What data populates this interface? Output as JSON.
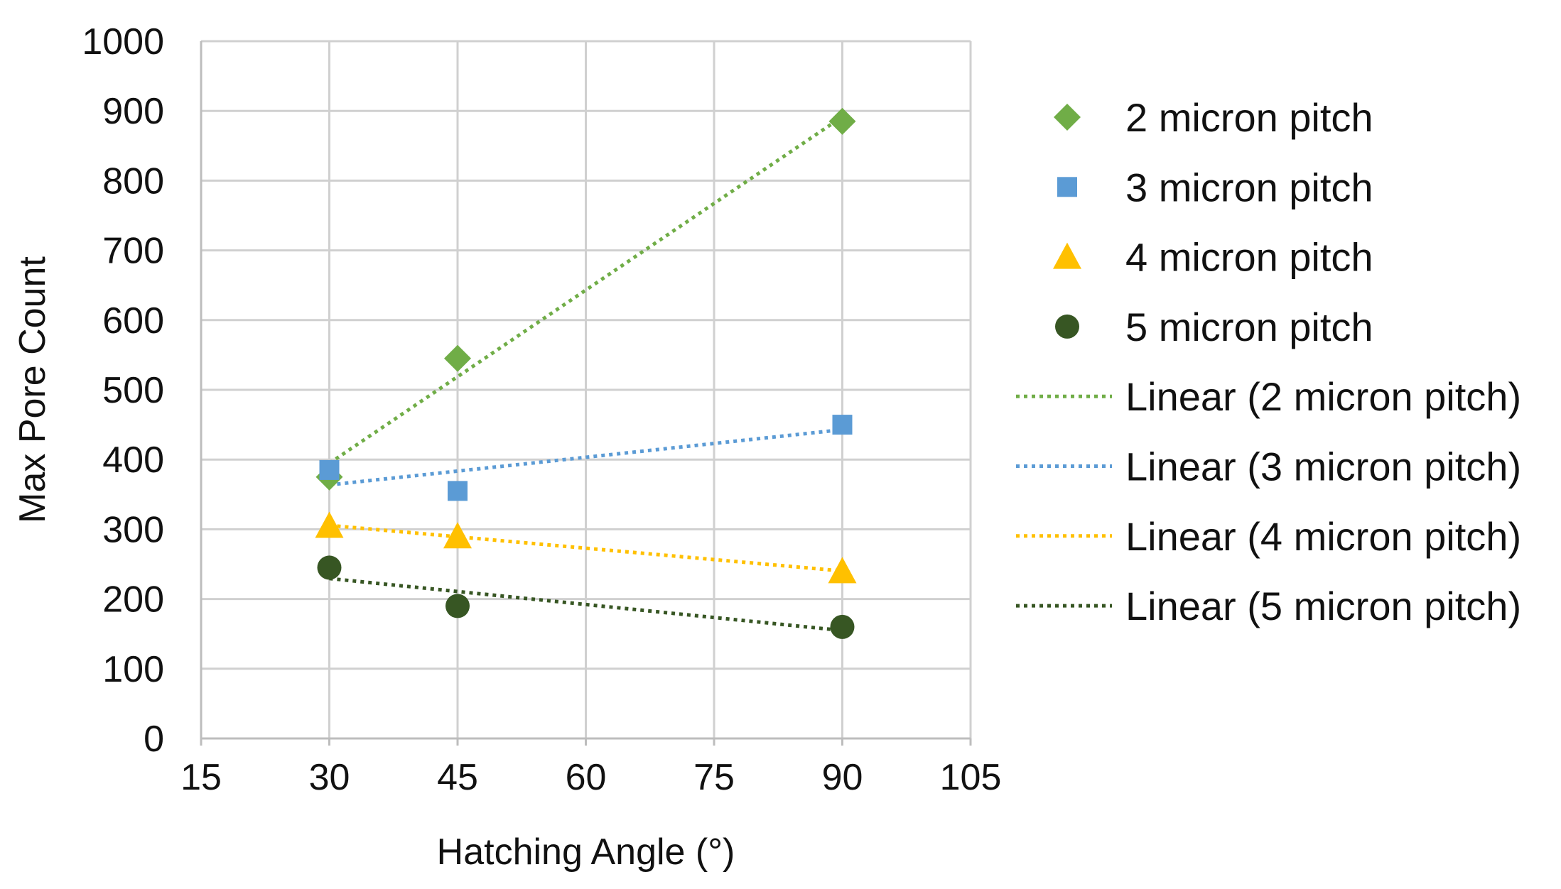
{
  "chart_data": {
    "type": "scatter",
    "title": "",
    "xlabel": "Hatching Angle (°)",
    "ylabel": "Max Pore Count",
    "xlim": [
      15,
      105
    ],
    "ylim": [
      0,
      1000
    ],
    "xticks": [
      15,
      30,
      45,
      60,
      75,
      90,
      105
    ],
    "yticks": [
      0,
      100,
      200,
      300,
      400,
      500,
      600,
      700,
      800,
      900,
      1000
    ],
    "grid": true,
    "legend_position": "right",
    "series": [
      {
        "name": "2 micron pitch",
        "marker": "diamond",
        "color": "#70ad47",
        "x": [
          30,
          45,
          90
        ],
        "y": [
          375,
          545,
          885
        ]
      },
      {
        "name": "3 micron pitch",
        "marker": "square",
        "color": "#5b9bd5",
        "x": [
          30,
          45,
          90
        ],
        "y": [
          385,
          355,
          450
        ]
      },
      {
        "name": "4 micron pitch",
        "marker": "triangle",
        "color": "#ffc000",
        "x": [
          30,
          45,
          90
        ],
        "y": [
          305,
          290,
          240
        ]
      },
      {
        "name": "5 micron pitch",
        "marker": "circle",
        "color": "#375623",
        "x": [
          30,
          45,
          90
        ],
        "y": [
          245,
          190,
          160
        ]
      }
    ],
    "trendlines": [
      {
        "name": "Linear (2 micron pitch)",
        "series": 0,
        "type": "linear",
        "color": "#70ad47"
      },
      {
        "name": "Linear (3 micron pitch)",
        "series": 1,
        "type": "linear",
        "color": "#5b9bd5"
      },
      {
        "name": "Linear (4 micron pitch)",
        "series": 2,
        "type": "linear",
        "color": "#ffc000"
      },
      {
        "name": "Linear (5 micron pitch)",
        "series": 3,
        "type": "linear",
        "color": "#375623"
      }
    ]
  }
}
